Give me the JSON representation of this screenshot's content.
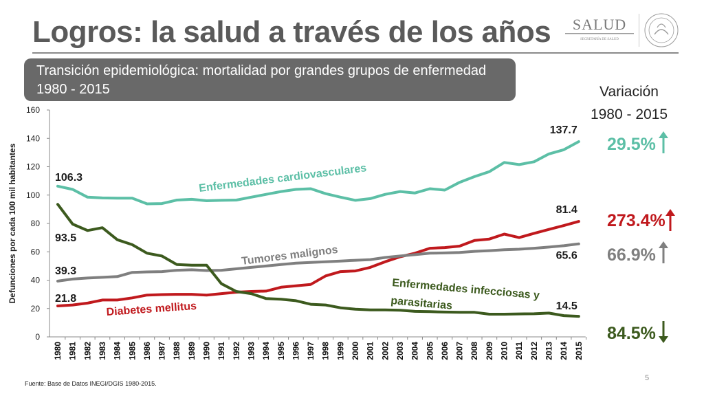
{
  "header": {
    "title": "Logros: la salud a través de los años",
    "logo_text": "SALUD",
    "logo_subtext": "SECRETARÍA DE SALUD"
  },
  "banner": {
    "line1": "Transición epidemiológica: mortalidad por grandes grupos de enfermedad",
    "line2": "1980 - 2015"
  },
  "variation": {
    "heading_line1": "Variación",
    "heading_line2": "1980 - 2015",
    "items": [
      {
        "value": "29.5%",
        "color": "#5cbfa6",
        "direction": "up"
      },
      {
        "value": "273.4%",
        "color": "#c0191d",
        "direction": "up"
      },
      {
        "value": "66.9%",
        "color": "#7f7f7f",
        "direction": "up"
      },
      {
        "value": "84.5%",
        "color": "#3c5a1e",
        "direction": "down"
      }
    ]
  },
  "footer": {
    "source": "Fuente: Base de Datos INEGI/DGIS 1980-2015.",
    "page": "5"
  },
  "chart_data": {
    "type": "line",
    "ylabel": "Defunciones  por cada 100 mil habitantes",
    "ylim": [
      0,
      160
    ],
    "yticks": [
      0,
      20,
      40,
      60,
      80,
      100,
      120,
      140,
      160
    ],
    "grid": false,
    "categories": [
      "1980",
      "1981",
      "1982",
      "1983",
      "1984",
      "1985",
      "1986",
      "1987",
      "1988",
      "1989",
      "1990",
      "1991",
      "1992",
      "1993",
      "1994",
      "1995",
      "1996",
      "1997",
      "1998",
      "1999",
      "2000",
      "2001",
      "2002",
      "2003",
      "2004",
      "2005",
      "2006",
      "2007",
      "2008",
      "2009",
      "2010",
      "2011",
      "2012",
      "2013",
      "2014",
      "2015"
    ],
    "series": [
      {
        "name": "Enfermedades cardiovasculares",
        "color": "#5cbfa6",
        "values": [
          106.3,
          104,
          98.5,
          98,
          97.8,
          97.8,
          93.8,
          94,
          96.5,
          97,
          96,
          96.3,
          96.5,
          98.5,
          100.5,
          102.5,
          104,
          104.5,
          101,
          98.5,
          96.3,
          97.5,
          100.5,
          102.5,
          101.5,
          104.5,
          103.5,
          109,
          113,
          116.5,
          123,
          121.5,
          123.5,
          129,
          132,
          137.7
        ],
        "start_label": "106.3",
        "end_label": "137.7"
      },
      {
        "name": "Diabetes mellitus",
        "color": "#c0191d",
        "values": [
          21.8,
          22.5,
          23.8,
          26,
          26,
          27.5,
          29.5,
          29.8,
          30,
          30,
          29.5,
          30.5,
          31.5,
          32,
          32.3,
          35,
          36,
          37,
          43,
          46,
          46.5,
          49,
          53,
          56.5,
          59,
          62.5,
          63,
          64,
          68,
          69,
          72.5,
          70,
          73,
          75.8,
          78.5,
          81.4
        ],
        "start_label": "21.8",
        "end_label": "81.4"
      },
      {
        "name": "Tumores malignos",
        "color": "#7f7f7f",
        "values": [
          39.3,
          40.8,
          41.5,
          42,
          42.5,
          45.5,
          45.8,
          46,
          47,
          47.3,
          46.8,
          47,
          48,
          49,
          50,
          51,
          52,
          52.5,
          53,
          53.5,
          54,
          54.5,
          56,
          57,
          58,
          59,
          59.2,
          59.5,
          60.3,
          60.8,
          61.5,
          61.8,
          62.5,
          63.3,
          64.3,
          65.6
        ],
        "start_label": "39.3",
        "end_label": "65.6"
      },
      {
        "name": "Enfermedades infecciosas y parasitarias",
        "color": "#3c5a1e",
        "values": [
          93.5,
          79.5,
          75,
          77,
          68.5,
          65,
          59,
          57,
          51,
          50.5,
          50.5,
          37.5,
          32,
          30.5,
          27,
          26.5,
          25.5,
          23,
          22.5,
          20.5,
          19.5,
          19,
          19,
          18.8,
          18,
          17.8,
          17.5,
          17.3,
          17.3,
          16,
          16,
          16.2,
          16.3,
          16.8,
          15,
          14.5
        ],
        "start_label": "93.5",
        "end_label": "14.5",
        "name_line1": "Enfermedades infecciosas y",
        "name_line2": "parasitarias"
      }
    ]
  }
}
